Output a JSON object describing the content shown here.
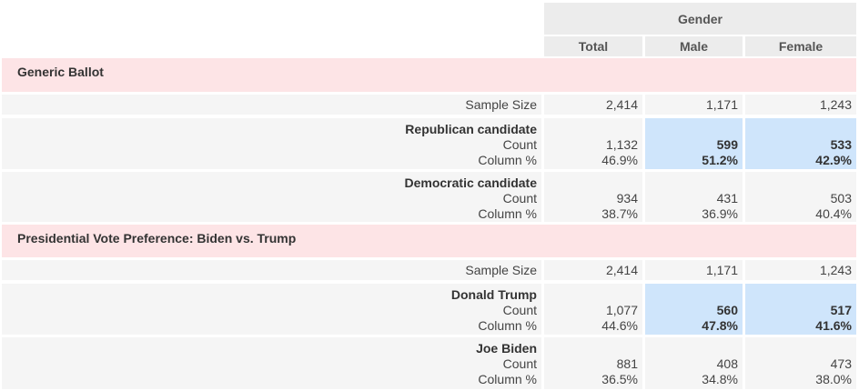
{
  "header": {
    "group": "Gender",
    "columns": [
      "Total",
      "Male",
      "Female"
    ]
  },
  "sections": [
    {
      "title": "Generic Ballot",
      "sample": {
        "label": "Sample Size",
        "values": [
          "2,414",
          "1,171",
          "1,243"
        ]
      },
      "rows": [
        {
          "name": "Republican candidate",
          "count_label": "Count",
          "pct_label": "Column %",
          "count": [
            "1,132",
            "599",
            "533"
          ],
          "pct": [
            "46.9%",
            "51.2%",
            "42.9%"
          ]
        },
        {
          "name": "Democratic candidate",
          "count_label": "Count",
          "pct_label": "Column %",
          "count": [
            "934",
            "431",
            "503"
          ],
          "pct": [
            "38.7%",
            "36.9%",
            "40.4%"
          ]
        }
      ]
    },
    {
      "title": "Presidential Vote Preference: Biden vs. Trump",
      "sample": {
        "label": "Sample Size",
        "values": [
          "2,414",
          "1,171",
          "1,243"
        ]
      },
      "rows": [
        {
          "name": "Donald Trump",
          "count_label": "Count",
          "pct_label": "Column %",
          "count": [
            "1,077",
            "560",
            "517"
          ],
          "pct": [
            "44.6%",
            "47.8%",
            "41.6%"
          ]
        },
        {
          "name": "Joe Biden",
          "count_label": "Count",
          "pct_label": "Column %",
          "count": [
            "881",
            "408",
            "473"
          ],
          "pct": [
            "36.5%",
            "34.8%",
            "38.0%"
          ]
        }
      ]
    }
  ],
  "colors": {
    "section_bg": "#fde4e6",
    "highlight_bg": "#cfe5fb",
    "header_bg": "#ececec"
  }
}
